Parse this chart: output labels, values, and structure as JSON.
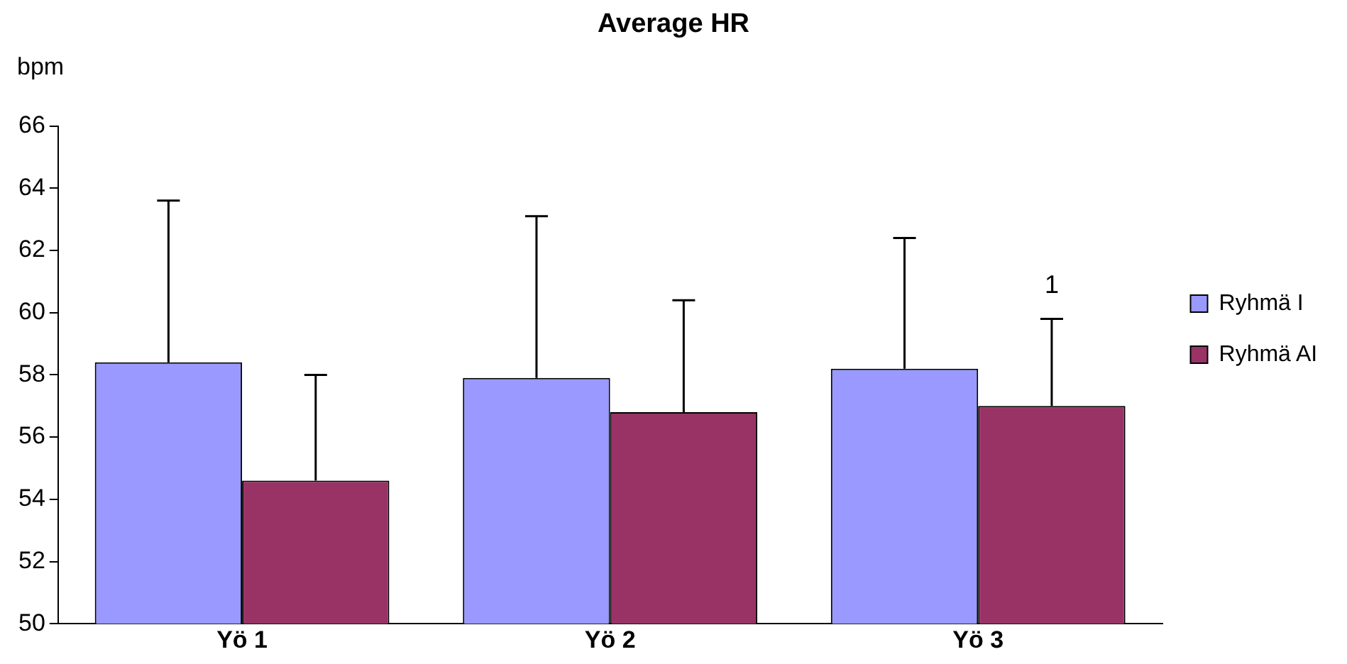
{
  "chart_data": {
    "type": "bar",
    "title": "Average HR",
    "ylabel": "bpm",
    "categories": [
      "Yö 1",
      "Yö 2",
      "Yö 3"
    ],
    "series": [
      {
        "name": "Ryhmä I",
        "color": "#9999ff",
        "values": [
          58.4,
          57.9,
          58.2
        ],
        "errors": [
          [
            58.4,
            63.6
          ],
          [
            57.9,
            63.1
          ],
          [
            58.2,
            62.4
          ]
        ]
      },
      {
        "name": "Ryhmä AI",
        "color": "#993366",
        "values": [
          54.6,
          56.8,
          57.0
        ],
        "errors": [
          [
            54.6,
            58.0
          ],
          [
            56.8,
            60.4
          ],
          [
            57.0,
            59.8
          ]
        ]
      }
    ],
    "ylim": [
      50,
      66
    ],
    "yticks": [
      50,
      52,
      54,
      56,
      58,
      60,
      62,
      64,
      66
    ],
    "grid": false,
    "legend": "right",
    "annotations": [
      "1"
    ]
  }
}
